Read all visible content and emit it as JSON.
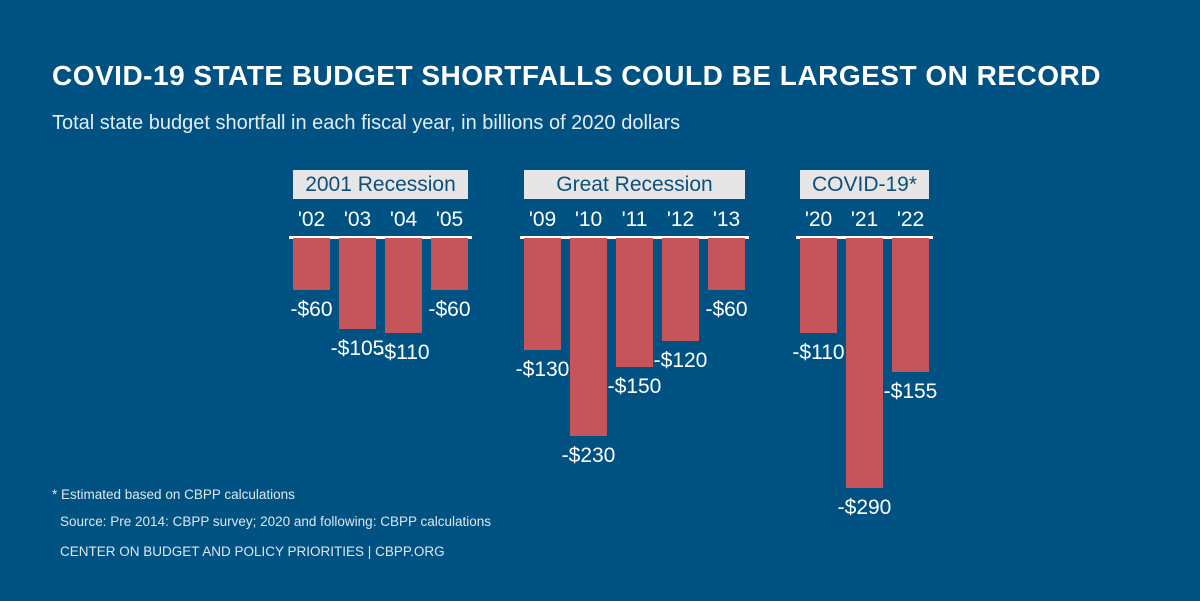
{
  "title": "COVID-19 STATE BUDGET SHORTFALLS COULD BE LARGEST ON RECORD",
  "subtitle": "Total state budget shortfall in each fiscal year, in billions of 2020 dollars",
  "footnote": "* Estimated based on CBPP calculations",
  "source": "Source: Pre 2014: CBPP survey;  2020 and following: CBPP calculations",
  "credit": "CENTER ON BUDGET AND POLICY PRIORITIES | CBPP.ORG",
  "colors": {
    "background": "#005283",
    "bar": "#c5555a",
    "group_box": "#e6e6e6"
  },
  "chart_data": {
    "type": "bar",
    "title": "COVID-19 STATE BUDGET SHORTFALLS COULD BE LARGEST ON RECORD",
    "ylabel": "",
    "ylim": [
      -290,
      0
    ],
    "grid": false,
    "groups": [
      {
        "name": "2001 Recession",
        "categories": [
          "'02",
          "'03",
          "'04",
          "'05"
        ],
        "values": [
          -60,
          -105,
          -110,
          -60
        ],
        "labels": [
          "-$60",
          "-$105",
          "-$110",
          "-$60"
        ]
      },
      {
        "name": "Great Recession",
        "categories": [
          "'09",
          "'10",
          "'11",
          "'12",
          "'13"
        ],
        "values": [
          -130,
          -230,
          -150,
          -120,
          -60
        ],
        "labels": [
          "-$130",
          "-$230",
          "-$150",
          "-$120",
          "-$60"
        ]
      },
      {
        "name": "COVID-19*",
        "categories": [
          "'20",
          "'21",
          "'22"
        ],
        "values": [
          -110,
          -290,
          -155
        ],
        "labels": [
          "-$110",
          "-$290",
          "-$155"
        ]
      }
    ]
  }
}
